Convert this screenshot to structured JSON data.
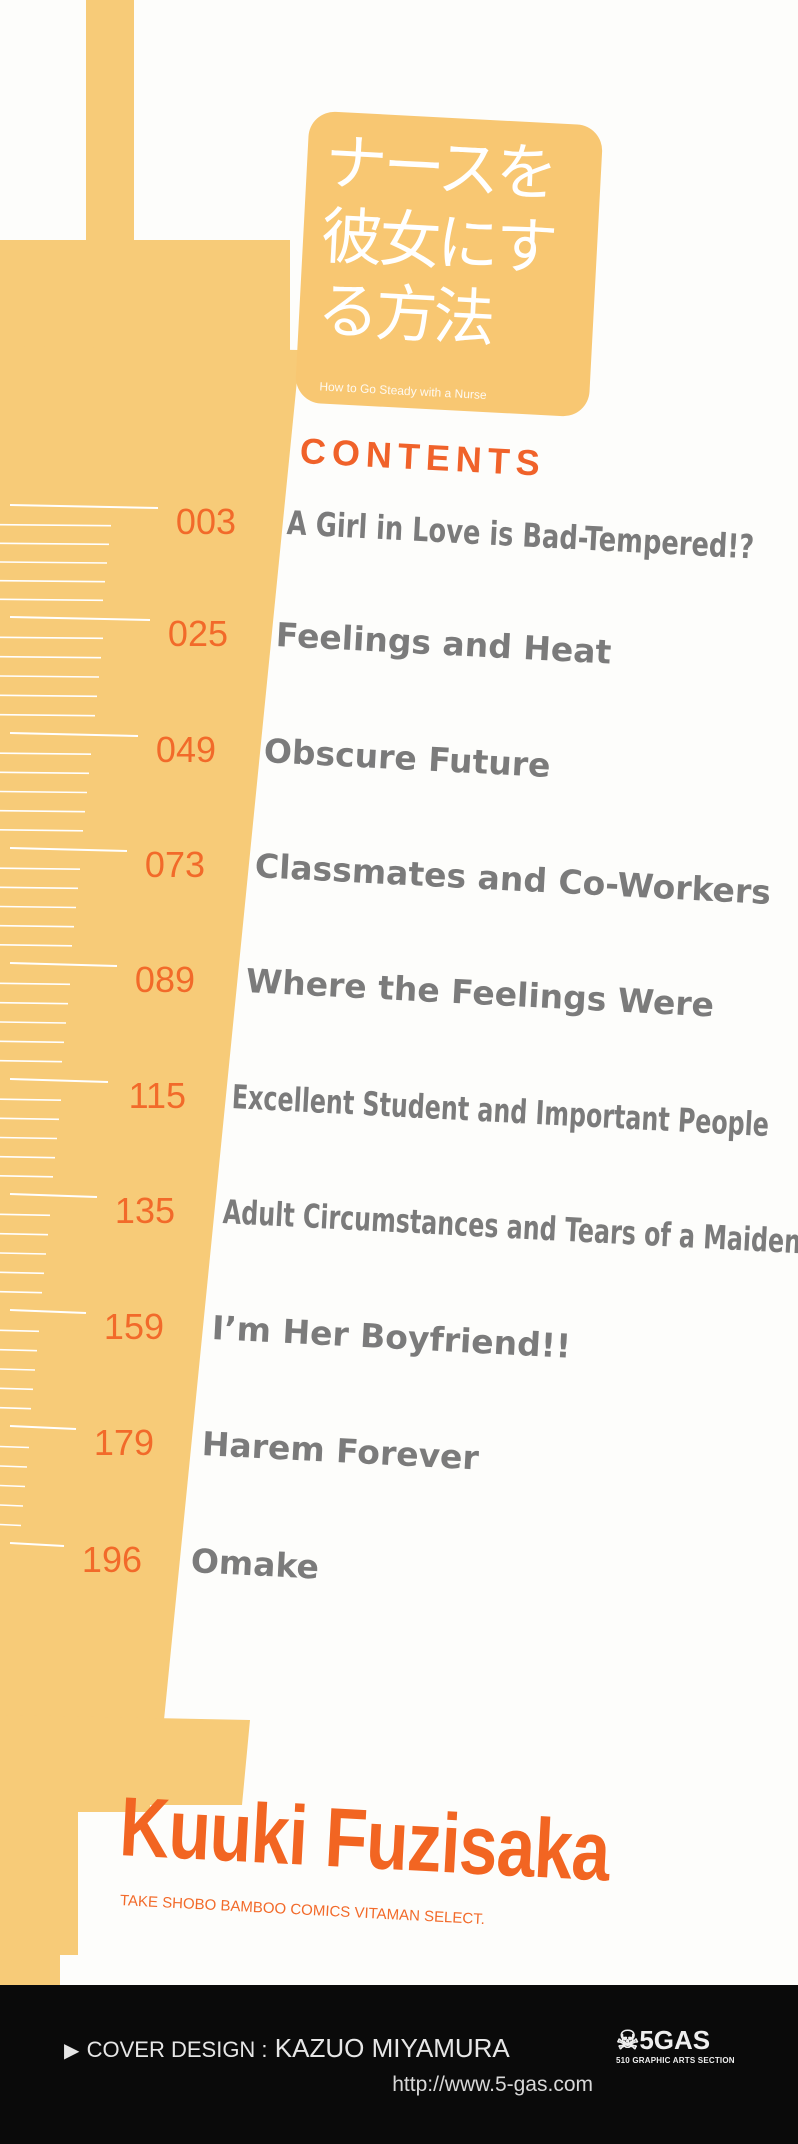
{
  "colors": {
    "syringe": "#f7cb78",
    "accent": "#f26522",
    "title_gray": "#7b7b7b",
    "footer_bg": "#0a0a0a"
  },
  "logo": {
    "japanese_title": "ナースを彼女にする方法",
    "english_title": "How to Go Steady with a Nurse"
  },
  "contents_heading": "CONTENTS",
  "chapters": [
    {
      "page": "003",
      "title": "A Girl in Love is Bad-Tempered!?"
    },
    {
      "page": "025",
      "title": "Feelings and Heat"
    },
    {
      "page": "049",
      "title": "Obscure Future"
    },
    {
      "page": "073",
      "title": "Classmates and Co-Workers"
    },
    {
      "page": "089",
      "title": "Where the Feelings Were"
    },
    {
      "page": "115",
      "title": "Excellent Student and Important People"
    },
    {
      "page": "135",
      "title": "Adult Circumstances and Tears of a Maiden"
    },
    {
      "page": "159",
      "title": "I’m Her Boyfriend!!"
    },
    {
      "page": "179",
      "title": "Harem Forever"
    },
    {
      "page": "196",
      "title": "Omake"
    }
  ],
  "author": "Kuuki Fuzisaka",
  "series": "TAKE SHOBO BAMBOO COMICS VITAMAN SELECT.",
  "footer": {
    "arrow_icon": "play-triangle-icon",
    "credit_label": "COVER DESIGN :",
    "designer": "KAZUO MIYAMURA",
    "url": "http://www.5-gas.com",
    "studio_logo": "5GAS",
    "studio_sub": "510 GRAPHIC ARTS SECTION"
  }
}
